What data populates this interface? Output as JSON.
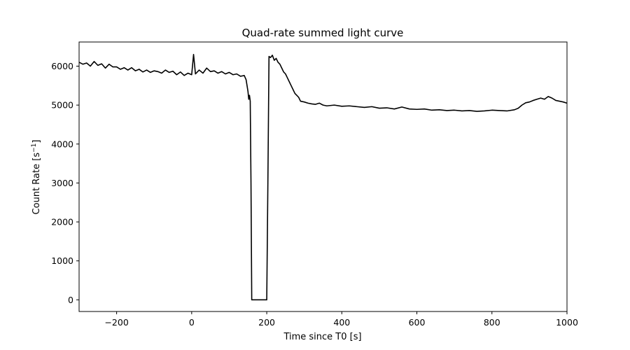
{
  "chart_data": {
    "type": "line",
    "title": "Quad-rate summed light curve",
    "xlabel": "Time since T0 [s]",
    "ylabel": "Count Rate [s",
    "ylabel_sup": "−1",
    "ylabel_close": "]",
    "xlim": [
      -300,
      1000
    ],
    "ylim": [
      -300,
      6620
    ],
    "xticks": [
      -200,
      0,
      200,
      400,
      600,
      800,
      1000
    ],
    "yticks": [
      0,
      1000,
      2000,
      3000,
      4000,
      5000,
      6000
    ],
    "grid": false,
    "line_color": "#000000",
    "series": [
      {
        "x": [
          -300,
          -290,
          -280,
          -270,
          -260,
          -250,
          -240,
          -230,
          -220,
          -210,
          -200,
          -190,
          -180,
          -170,
          -160,
          -150,
          -140,
          -130,
          -120,
          -110,
          -100,
          -90,
          -80,
          -70,
          -60,
          -50,
          -40,
          -30,
          -20,
          -10,
          0,
          5,
          10,
          20,
          30,
          40,
          50,
          60,
          70,
          80,
          90,
          100,
          110,
          120,
          130,
          140,
          145,
          150,
          152,
          154,
          156,
          158,
          160,
          180,
          200,
          203,
          206,
          210,
          215,
          220,
          225,
          230,
          235,
          240,
          245,
          250,
          255,
          260,
          265,
          270,
          275,
          280,
          285,
          290,
          300,
          310,
          320,
          330,
          340,
          350,
          360,
          380,
          400,
          420,
          440,
          460,
          480,
          500,
          520,
          540,
          560,
          580,
          600,
          620,
          640,
          660,
          680,
          700,
          720,
          740,
          760,
          780,
          800,
          820,
          840,
          860,
          870,
          880,
          890,
          900,
          910,
          920,
          930,
          940,
          950,
          960,
          970,
          980,
          990,
          1000
        ],
        "y": [
          6100,
          6050,
          6080,
          6000,
          6120,
          6020,
          6060,
          5950,
          6050,
          5980,
          5980,
          5920,
          5960,
          5900,
          5960,
          5880,
          5920,
          5850,
          5900,
          5840,
          5880,
          5860,
          5820,
          5900,
          5840,
          5870,
          5780,
          5850,
          5760,
          5820,
          5780,
          6300,
          5800,
          5900,
          5820,
          5950,
          5860,
          5880,
          5820,
          5860,
          5800,
          5840,
          5780,
          5800,
          5740,
          5760,
          5650,
          5350,
          5150,
          5250,
          5100,
          3000,
          0,
          0,
          0,
          3000,
          6250,
          6220,
          6280,
          6150,
          6200,
          6100,
          6050,
          5950,
          5850,
          5800,
          5700,
          5600,
          5500,
          5400,
          5300,
          5250,
          5200,
          5100,
          5080,
          5050,
          5030,
          5020,
          5050,
          5000,
          4980,
          5000,
          4970,
          4980,
          4960,
          4940,
          4960,
          4920,
          4930,
          4900,
          4950,
          4900,
          4890,
          4900,
          4870,
          4880,
          4860,
          4870,
          4850,
          4860,
          4840,
          4850,
          4870,
          4860,
          4850,
          4880,
          4920,
          5000,
          5060,
          5080,
          5120,
          5150,
          5180,
          5150,
          5220,
          5180,
          5120,
          5100,
          5080,
          5050
        ]
      }
    ]
  }
}
